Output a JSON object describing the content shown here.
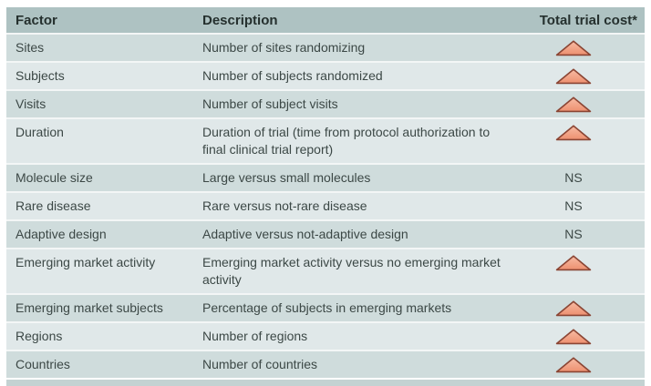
{
  "table": {
    "header": {
      "factor": "Factor",
      "description": "Description",
      "cost": "Total trial cost*"
    },
    "rows": [
      {
        "factor": "Sites",
        "description": "Number of sites randomizing",
        "cost": "up"
      },
      {
        "factor": "Subjects",
        "description": "Number of subjects randomized",
        "cost": "up"
      },
      {
        "factor": "Visits",
        "description": "Number of subject visits",
        "cost": "up"
      },
      {
        "factor": "Duration",
        "description": "Duration of trial (time from protocol authorization to final clinical trial report)",
        "cost": "up"
      },
      {
        "factor": "Molecule size",
        "description": "Large versus small molecules",
        "cost": "NS"
      },
      {
        "factor": "Rare disease",
        "description": "Rare versus not-rare disease",
        "cost": "NS"
      },
      {
        "factor": "Adaptive design",
        "description": "Adaptive versus not-adaptive design",
        "cost": "NS"
      },
      {
        "factor": "Emerging market activity",
        "description": "Emerging market activity versus no emerging market activity",
        "cost": "up"
      },
      {
        "factor": "Emerging market subjects",
        "description": "Percentage of subjects in emerging markets",
        "cost": "up"
      },
      {
        "factor": "Regions",
        "description": "Number of regions",
        "cost": "up"
      },
      {
        "factor": "Countries",
        "description": "Number of countries",
        "cost": "up"
      }
    ]
  },
  "colors": {
    "page_bg": "#ffffff",
    "header_bg": "#aec2c2",
    "row_light": "#e0e8e9",
    "row_dark": "#cfdcdc",
    "separator": "#f3f6f6",
    "bottom_bar": "#c4d2d2",
    "header_text": "#25302e",
    "body_text": "#3c4846",
    "triangle_fill_top": "#f7bca4",
    "triangle_fill_bottom": "#ed8f6f",
    "triangle_border": "#8a4534"
  }
}
